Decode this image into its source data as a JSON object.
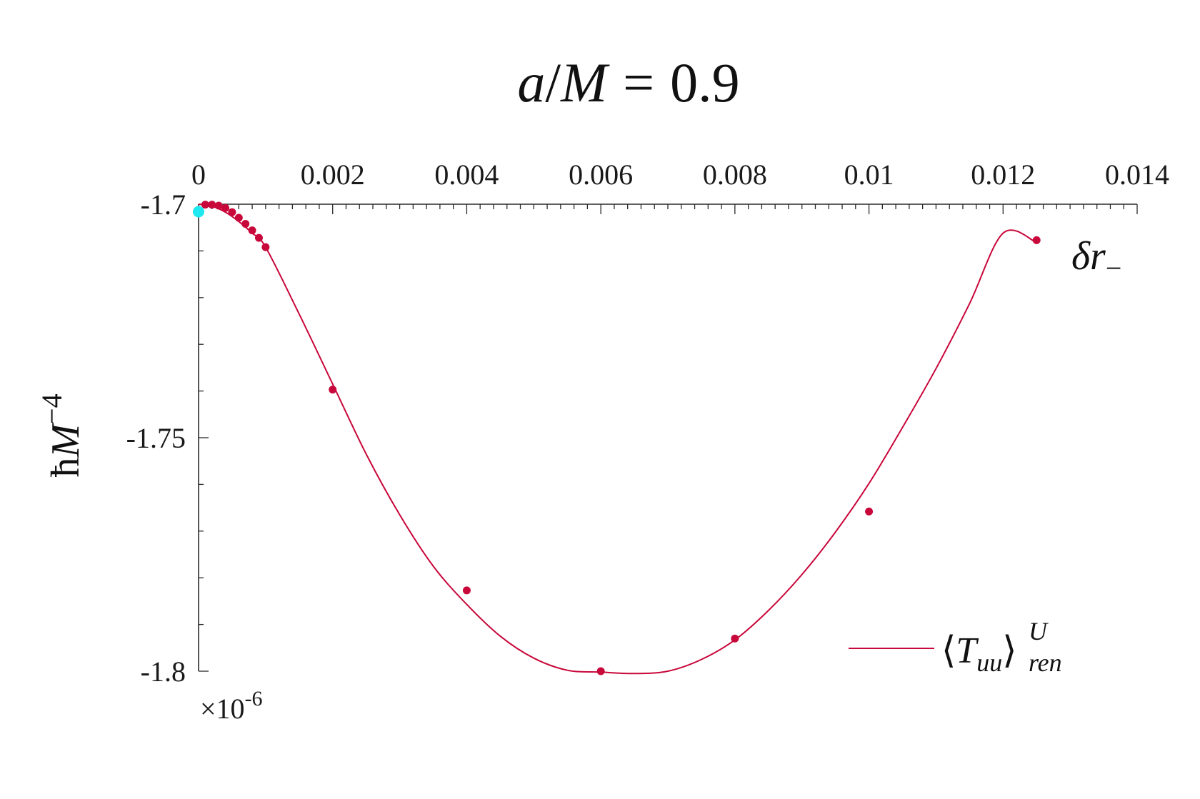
{
  "chart_data": {
    "type": "line",
    "title": "a/M = 0.9",
    "title_parts": {
      "a": "a",
      "slash": "/",
      "M": "M",
      "eq": "=",
      "val": "0.9"
    },
    "xlabel": "δr₋",
    "xlabel_parts": {
      "delta_r": "δr",
      "sub": "−"
    },
    "ylabel": "ℏM⁻⁴",
    "ylabel_parts": {
      "hbar": "ħ",
      "M": "M",
      "exp": "−4"
    },
    "x_axis_position": "top",
    "xlim": [
      0,
      0.014
    ],
    "ylim": [
      -1.8,
      -1.7
    ],
    "y_scale_factor": "×10-6",
    "y_scale_parts": {
      "times": "×10",
      "exp": "-6"
    },
    "x_ticks": [
      0,
      0.002,
      0.004,
      0.006,
      0.008,
      0.01,
      0.012,
      0.014
    ],
    "x_tick_labels": [
      "0",
      "0.002",
      "0.004",
      "0.006",
      "0.008",
      "0.01",
      "0.012",
      "0.014"
    ],
    "y_ticks": [
      -1.7,
      -1.75,
      -1.8
    ],
    "y_tick_labels": [
      "-1.7",
      "-1.75",
      "-1.8"
    ],
    "grid": false,
    "legend_position": "bottom-right",
    "series": [
      {
        "name": "⟨Tuu⟩Uren",
        "legend_parts": {
          "open": "⟨",
          "T": "T",
          "sub": "uu",
          "close": "⟩",
          "sup": "U",
          "subren": "ren"
        },
        "color": "#c8073a",
        "curve_x": [
          0,
          0.0002,
          0.0004,
          0.0006,
          0.0008,
          0.001,
          0.0015,
          0.002,
          0.0025,
          0.003,
          0.0035,
          0.004,
          0.0045,
          0.005,
          0.0055,
          0.006,
          0.0065,
          0.007,
          0.0075,
          0.008,
          0.0085,
          0.009,
          0.0095,
          0.01,
          0.0105,
          0.011,
          0.0115,
          0.012,
          0.0125
        ],
        "curve_y": [
          -1.7,
          -1.7004,
          -1.7017,
          -1.7037,
          -1.7062,
          -1.7092,
          -1.7235,
          -1.7385,
          -1.7535,
          -1.7665,
          -1.7775,
          -1.7857,
          -1.7925,
          -1.7972,
          -1.7998,
          -1.8002,
          -1.8005,
          -1.8,
          -1.7975,
          -1.7933,
          -1.787,
          -1.7793,
          -1.7702,
          -1.7598,
          -1.7478,
          -1.7352,
          -1.7213,
          -1.7062,
          -1.7082
        ],
        "points_x": [
          0.0001,
          0.0002,
          0.0003,
          0.0004,
          0.0005,
          0.0006,
          0.0007,
          0.0008,
          0.0009,
          0.001,
          0.002,
          0.004,
          0.006,
          0.008,
          0.01,
          0.0125
        ],
        "points_y": [
          -1.7001,
          -1.7001,
          -1.7003,
          -1.7008,
          -1.7017,
          -1.7029,
          -1.7042,
          -1.7056,
          -1.7072,
          -1.7092,
          -1.7397,
          -1.7827,
          -1.8,
          -1.793,
          -1.7658,
          -1.7077
        ]
      }
    ],
    "highlight_point": {
      "x": 0,
      "y": -1.7016,
      "color": "#1ee8f0"
    }
  }
}
